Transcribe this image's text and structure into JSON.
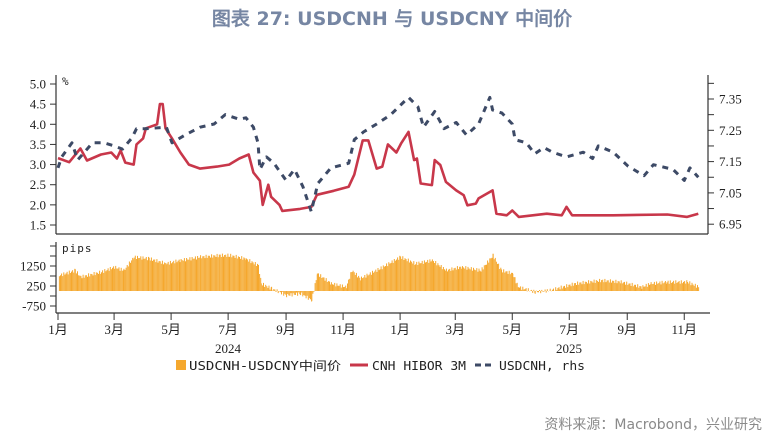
{
  "title": "图表 27: USDCNH 与 USDCNY 中间价",
  "source": "资料来源：Macrobond，兴业研究",
  "colors": {
    "bars": "#f5a82e",
    "hibor": "#c8374a",
    "usdcnh": "#3d4a66",
    "title": "#7686a3"
  },
  "chart_data": {
    "type": "combo",
    "top_panel": {
      "left_unit": "%",
      "left_ylim": [
        1.3,
        5.2
      ],
      "left_ticks": [
        "5.0",
        "4.5",
        "4.0",
        "3.5",
        "3.0",
        "2.5",
        "2.0",
        "1.5"
      ],
      "right_ylim": [
        6.92,
        7.42
      ],
      "right_ticks": [
        "7.35",
        "7.25",
        "7.15",
        "7.05",
        "6.95"
      ],
      "series": [
        {
          "name": "CNH HIBOR 3M",
          "type": "line",
          "axis": "left",
          "points": [
            [
              "2024-01-01",
              3.16
            ],
            [
              "2024-01-13",
              3.06
            ],
            [
              "2024-01-25",
              3.4
            ],
            [
              "2024-02-01",
              3.1
            ],
            [
              "2024-02-16",
              3.25
            ],
            [
              "2024-02-27",
              3.3
            ],
            [
              "2024-03-04",
              3.15
            ],
            [
              "2024-03-08",
              3.35
            ],
            [
              "2024-03-13",
              3.05
            ],
            [
              "2024-03-22",
              3.0
            ],
            [
              "2024-03-25",
              3.5
            ],
            [
              "2024-04-01",
              3.65
            ],
            [
              "2024-04-04",
              3.9
            ],
            [
              "2024-04-16",
              4.0
            ],
            [
              "2024-04-19",
              4.5
            ],
            [
              "2024-04-22",
              4.5
            ],
            [
              "2024-04-25",
              3.9
            ],
            [
              "2024-05-02",
              3.65
            ],
            [
              "2024-05-11",
              3.3
            ],
            [
              "2024-05-20",
              3.0
            ],
            [
              "2024-06-01",
              2.9
            ],
            [
              "2024-06-19",
              2.95
            ],
            [
              "2024-07-02",
              3.0
            ],
            [
              "2024-07-13",
              3.15
            ],
            [
              "2024-07-23",
              3.25
            ],
            [
              "2024-07-28",
              2.8
            ],
            [
              "2024-08-04",
              2.6
            ],
            [
              "2024-08-07",
              2.0
            ],
            [
              "2024-08-13",
              2.5
            ],
            [
              "2024-08-16",
              2.2
            ],
            [
              "2024-08-25",
              2.0
            ],
            [
              "2024-08-28",
              1.85
            ],
            [
              "2024-09-16",
              1.9
            ],
            [
              "2024-09-28",
              1.95
            ],
            [
              "2024-10-04",
              2.25
            ],
            [
              "2024-10-22",
              2.35
            ],
            [
              "2024-11-07",
              2.45
            ],
            [
              "2024-11-13",
              2.75
            ],
            [
              "2024-11-22",
              3.6
            ],
            [
              "2024-11-28",
              3.6
            ],
            [
              "2024-12-07",
              2.9
            ],
            [
              "2024-12-13",
              2.95
            ],
            [
              "2024-12-19",
              3.5
            ],
            [
              "2024-12-28",
              3.3
            ],
            [
              "2025-01-02",
              3.52
            ],
            [
              "2025-01-10",
              3.81
            ],
            [
              "2025-01-16",
              3.11
            ],
            [
              "2025-01-19",
              3.15
            ],
            [
              "2025-01-23",
              2.53
            ],
            [
              "2025-02-04",
              2.49
            ],
            [
              "2025-02-07",
              3.11
            ],
            [
              "2025-02-13",
              2.99
            ],
            [
              "2025-02-19",
              2.57
            ],
            [
              "2025-03-02",
              2.36
            ],
            [
              "2025-03-10",
              2.24
            ],
            [
              "2025-03-14",
              1.99
            ],
            [
              "2025-03-23",
              2.03
            ],
            [
              "2025-03-26",
              2.16
            ],
            [
              "2025-04-10",
              2.36
            ],
            [
              "2025-04-14",
              1.78
            ],
            [
              "2025-04-25",
              1.74
            ],
            [
              "2025-05-01",
              1.86
            ],
            [
              "2025-05-08",
              1.7
            ],
            [
              "2025-06-07",
              1.78
            ],
            [
              "2025-06-23",
              1.74
            ],
            [
              "2025-06-28",
              1.95
            ],
            [
              "2025-07-04",
              1.74
            ],
            [
              "2025-08-17",
              1.74
            ],
            [
              "2025-10-14",
              1.76
            ],
            [
              "2025-11-04",
              1.7
            ],
            [
              "2025-11-16",
              1.78
            ]
          ]
        },
        {
          "name": "USDCNH, rhs",
          "type": "line",
          "style": "dashed",
          "axis": "right",
          "points": [
            [
              "2024-01-01",
              7.13
            ],
            [
              "2024-01-05",
              7.165
            ],
            [
              "2024-01-16",
              7.21
            ],
            [
              "2024-01-22",
              7.155
            ],
            [
              "2024-02-07",
              7.21
            ],
            [
              "2024-02-19",
              7.21
            ],
            [
              "2024-03-01",
              7.2
            ],
            [
              "2024-03-10",
              7.19
            ],
            [
              "2024-03-20",
              7.225
            ],
            [
              "2024-03-25",
              7.255
            ],
            [
              "2024-04-04",
              7.255
            ],
            [
              "2024-04-26",
              7.26
            ],
            [
              "2024-05-02",
              7.21
            ],
            [
              "2024-05-16",
              7.235
            ],
            [
              "2024-06-01",
              7.26
            ],
            [
              "2024-06-16",
              7.27
            ],
            [
              "2024-06-28",
              7.3
            ],
            [
              "2024-07-13",
              7.285
            ],
            [
              "2024-07-20",
              7.29
            ],
            [
              "2024-07-28",
              7.26
            ],
            [
              "2024-08-02",
              7.21
            ],
            [
              "2024-08-04",
              7.125
            ],
            [
              "2024-08-11",
              7.165
            ],
            [
              "2024-08-19",
              7.145
            ],
            [
              "2024-09-01",
              7.09
            ],
            [
              "2024-09-10",
              7.125
            ],
            [
              "2024-09-19",
              7.07
            ],
            [
              "2024-09-28",
              6.99
            ],
            [
              "2024-10-05",
              7.08
            ],
            [
              "2024-10-19",
              7.13
            ],
            [
              "2024-11-07",
              7.145
            ],
            [
              "2024-11-13",
              7.22
            ],
            [
              "2024-11-23",
              7.245
            ],
            [
              "2024-12-07",
              7.27
            ],
            [
              "2024-12-22",
              7.3
            ],
            [
              "2025-01-10",
              7.355
            ],
            [
              "2025-01-20",
              7.325
            ],
            [
              "2025-01-26",
              7.26
            ],
            [
              "2025-02-07",
              7.31
            ],
            [
              "2025-02-17",
              7.255
            ],
            [
              "2025-03-02",
              7.275
            ],
            [
              "2025-03-13",
              7.235
            ],
            [
              "2025-03-26",
              7.27
            ],
            [
              "2025-04-07",
              7.355
            ],
            [
              "2025-04-10",
              7.315
            ],
            [
              "2025-04-20",
              7.305
            ],
            [
              "2025-05-01",
              7.27
            ],
            [
              "2025-05-04",
              7.22
            ],
            [
              "2025-05-16",
              7.21
            ],
            [
              "2025-05-25",
              7.175
            ],
            [
              "2025-06-04",
              7.195
            ],
            [
              "2025-06-13",
              7.18
            ],
            [
              "2025-06-28",
              7.165
            ],
            [
              "2025-07-16",
              7.18
            ],
            [
              "2025-07-26",
              7.16
            ],
            [
              "2025-08-01",
              7.2
            ],
            [
              "2025-08-17",
              7.18
            ],
            [
              "2025-09-02",
              7.135
            ],
            [
              "2025-09-19",
              7.105
            ],
            [
              "2025-09-29",
              7.14
            ],
            [
              "2025-10-20",
              7.125
            ],
            [
              "2025-11-01",
              7.09
            ],
            [
              "2025-11-07",
              7.13
            ],
            [
              "2025-11-16",
              7.1
            ]
          ]
        }
      ]
    },
    "bottom_panel": {
      "unit": "pips",
      "ylim": [
        -1100,
        2400
      ],
      "ticks": [
        "1250",
        "250",
        "-750"
      ],
      "series": [
        {
          "name": "USDCNH-USDCNY中间价",
          "type": "bar",
          "points": [
            [
              "2024-01-02",
              780
            ],
            [
              "2024-01-19",
              1030
            ],
            [
              "2024-01-25",
              700
            ],
            [
              "2024-02-16",
              950
            ],
            [
              "2024-03-01",
              1200
            ],
            [
              "2024-03-11",
              1030
            ],
            [
              "2024-03-22",
              1700
            ],
            [
              "2024-04-07",
              1620
            ],
            [
              "2024-04-25",
              1370
            ],
            [
              "2024-05-10",
              1530
            ],
            [
              "2024-06-01",
              1700
            ],
            [
              "2024-06-22",
              1780
            ],
            [
              "2024-07-02",
              1780
            ],
            [
              "2024-07-19",
              1620
            ],
            [
              "2024-08-02",
              1280
            ],
            [
              "2024-08-05",
              370
            ],
            [
              "2024-08-16",
              120
            ],
            [
              "2024-09-01",
              -220
            ],
            [
              "2024-09-16",
              -130
            ],
            [
              "2024-09-28",
              -470
            ],
            [
              "2024-10-04",
              870
            ],
            [
              "2024-10-19",
              370
            ],
            [
              "2024-11-04",
              200
            ],
            [
              "2024-11-10",
              1030
            ],
            [
              "2024-11-19",
              620
            ],
            [
              "2024-12-10",
              1120
            ],
            [
              "2025-01-01",
              1700
            ],
            [
              "2025-01-17",
              1370
            ],
            [
              "2025-02-04",
              1530
            ],
            [
              "2025-02-19",
              1030
            ],
            [
              "2025-03-07",
              1200
            ],
            [
              "2025-03-28",
              1030
            ],
            [
              "2025-04-10",
              1780
            ],
            [
              "2025-04-19",
              1030
            ],
            [
              "2025-05-01",
              870
            ],
            [
              "2025-05-07",
              200
            ],
            [
              "2025-05-25",
              -50
            ],
            [
              "2025-06-10",
              30
            ],
            [
              "2025-07-07",
              370
            ],
            [
              "2025-08-04",
              530
            ],
            [
              "2025-08-25",
              450
            ],
            [
              "2025-09-16",
              200
            ],
            [
              "2025-09-26",
              370
            ],
            [
              "2025-10-13",
              450
            ],
            [
              "2025-11-04",
              450
            ],
            [
              "2025-11-16",
              200
            ]
          ]
        }
      ]
    },
    "x_tick_labels": [
      "1月",
      "3月",
      "5月",
      "7月",
      "9月",
      "11月",
      "1月",
      "3月",
      "5月",
      "7月",
      "9月",
      "11月"
    ],
    "x_tick_dates": [
      "2024-01-01",
      "2024-03-01",
      "2024-05-01",
      "2024-07-01",
      "2024-09-01",
      "2024-11-01",
      "2025-01-01",
      "2025-03-01",
      "2025-05-01",
      "2025-07-01",
      "2025-09-01",
      "2025-11-01"
    ],
    "year_labels": [
      "2024",
      "2025"
    ],
    "legend": {
      "position": "bottom",
      "items": [
        "USDCNH-USDCNY中间价",
        "CNH HIBOR 3M",
        "USDCNH, rhs"
      ]
    },
    "grid": false
  }
}
